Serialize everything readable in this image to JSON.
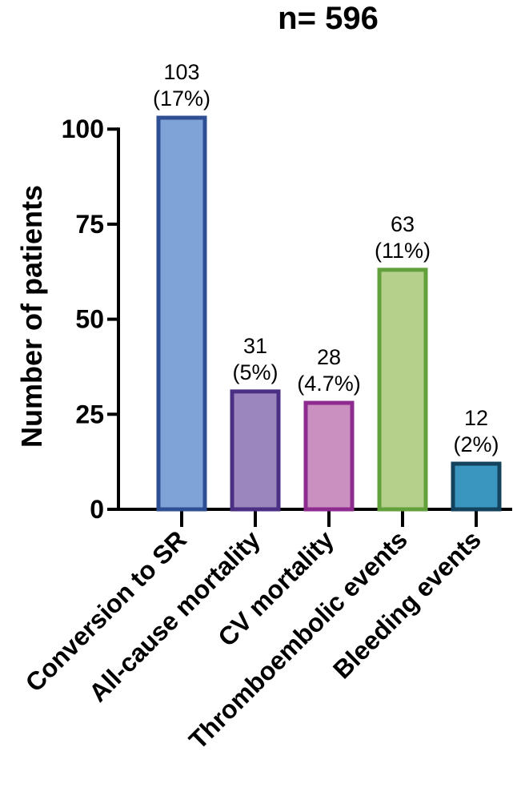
{
  "chart_data": {
    "type": "bar",
    "title": "n= 596",
    "xlabel": "",
    "ylabel": "Number of patients",
    "ylim": [
      0,
      103
    ],
    "yticks": [
      0,
      25,
      50,
      75,
      100
    ],
    "grid": false,
    "categories": [
      "Conversion to SR",
      "All-cause mortality",
      "CV mortality",
      "Thromboembolic events",
      "Bleeding events"
    ],
    "values": [
      103,
      31,
      28,
      63,
      12
    ],
    "labels": [
      {
        "count": "103",
        "pct": "(17%)"
      },
      {
        "count": "31",
        "pct": "(5%)"
      },
      {
        "count": "28",
        "pct": "(4.7%)"
      },
      {
        "count": "63",
        "pct": "(11%)"
      },
      {
        "count": "12",
        "pct": "(2%)"
      }
    ],
    "fill_colors": [
      "#7fa3d6",
      "#9b86be",
      "#c990c0",
      "#b5d08a",
      "#3a96be"
    ],
    "edge_colors": [
      "#2f4f94",
      "#4a2f84",
      "#8e2b8f",
      "#62a03c",
      "#14435e"
    ]
  }
}
